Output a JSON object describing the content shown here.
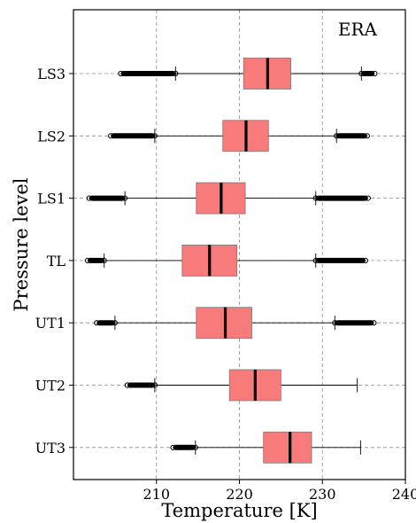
{
  "chart_data": {
    "type": "boxplot",
    "orientation": "horizontal",
    "annotation": "ERA",
    "xlabel": "Temperature [K]",
    "ylabel": "Pressure level",
    "xlim": [
      200,
      240
    ],
    "xticks": [
      210,
      220,
      230,
      240
    ],
    "grid": true,
    "box_color": "#f77b7b",
    "median_color": "#000000",
    "categories": [
      "LS3",
      "LS2",
      "LS1",
      "TL",
      "UT1",
      "UT2",
      "UT3"
    ],
    "boxes": [
      {
        "label": "LS3",
        "whisker_low": 212.3,
        "q1": 220.5,
        "median": 223.4,
        "q3": 226.2,
        "whisker_high": 234.7,
        "outliers_low": [
          205.7,
          212.3
        ],
        "outliers_high": [
          234.7,
          236.3
        ]
      },
      {
        "label": "LS2",
        "whisker_low": 209.8,
        "q1": 218.0,
        "median": 220.8,
        "q3": 223.5,
        "whisker_high": 231.7,
        "outliers_low": [
          204.5,
          209.8
        ],
        "outliers_high": [
          231.7,
          235.4
        ]
      },
      {
        "label": "LS1",
        "whisker_low": 206.2,
        "q1": 214.8,
        "median": 217.8,
        "q3": 220.7,
        "whisker_high": 229.2,
        "outliers_low": [
          201.9,
          206.2
        ],
        "outliers_high": [
          229.2,
          235.5
        ]
      },
      {
        "label": "TL",
        "whisker_low": 203.7,
        "q1": 213.1,
        "median": 216.4,
        "q3": 219.7,
        "whisker_high": 229.2,
        "outliers_low": [
          201.7,
          203.7
        ],
        "outliers_high": [
          229.2,
          235.2
        ]
      },
      {
        "label": "UT1",
        "whisker_low": 205.0,
        "q1": 214.8,
        "median": 218.3,
        "q3": 221.5,
        "whisker_high": 231.5,
        "outliers_low": [
          202.8,
          205.0
        ],
        "outliers_high": [
          231.5,
          236.2
        ]
      },
      {
        "label": "UT2",
        "whisker_low": 209.8,
        "q1": 218.8,
        "median": 221.9,
        "q3": 225.0,
        "whisker_high": 234.2,
        "outliers_low": [
          206.5,
          209.8
        ],
        "outliers_high": []
      },
      {
        "label": "UT3",
        "whisker_low": 214.7,
        "q1": 222.9,
        "median": 226.1,
        "q3": 228.7,
        "whisker_high": 234.6,
        "outliers_low": [
          212.0,
          214.7
        ],
        "outliers_high": []
      }
    ]
  }
}
